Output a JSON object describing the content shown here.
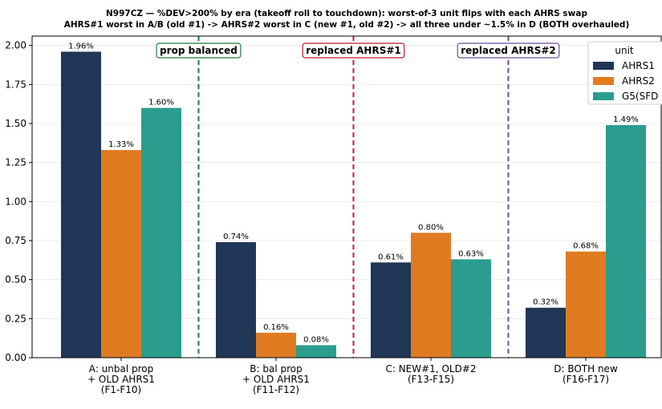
{
  "chart_data": {
    "type": "bar",
    "title": "N997CZ — %DEV>200% by era (takeoff roll to touchdown): worst-of-3 unit flips with each AHRS swap",
    "subtitle": "AHRS#1 worst in A/B (old #1) -> AHRS#2 worst in C (new #1, old #2) -> all three under ~1.5% in D (BOTH overhauled)",
    "categories": [
      "A: unbal prop\n+ OLD AHRS1\n(F1-F10)",
      "B: bal prop\n+ OLD AHRS1\n(F11-F12)",
      "C: NEW#1, OLD#2\n(F13-F15)",
      "D: BOTH new\n(F16-F17)"
    ],
    "series": [
      {
        "name": "AHRS1",
        "color": "#1f3656",
        "values": [
          1.96,
          0.74,
          0.61,
          0.32
        ],
        "value_labels": [
          "1.96%",
          "0.74%",
          "0.61%",
          "0.32%"
        ]
      },
      {
        "name": "AHRS2",
        "color": "#e07b22",
        "values": [
          1.33,
          0.16,
          0.8,
          0.68
        ],
        "value_labels": [
          "1.33%",
          "0.16%",
          "0.80%",
          "0.68%"
        ]
      },
      {
        "name": "G5(SFD",
        "color": "#2a9d8f",
        "values": [
          1.6,
          0.08,
          0.63,
          1.49
        ],
        "value_labels": [
          "1.60%",
          "0.08%",
          "0.63%",
          "1.49%"
        ]
      }
    ],
    "legend_title": "unit",
    "legend": "upper right",
    "ylim": [
      0,
      2.06
    ],
    "yticks": [
      {
        "value": 0,
        "label": "0.00"
      },
      {
        "value": 0.25,
        "label": "0.25"
      },
      {
        "value": 0.5,
        "label": "0.50"
      },
      {
        "value": 0.75,
        "label": "0.75"
      },
      {
        "value": 1,
        "label": "1.00"
      },
      {
        "value": 1.25,
        "label": "1.25"
      },
      {
        "value": 1.5,
        "label": "1.50"
      },
      {
        "value": 1.75,
        "label": "1.75"
      },
      {
        "value": 2,
        "label": "2.00"
      }
    ],
    "grid": true,
    "annotations": [
      {
        "text": "prop balanced",
        "color": "#1e7b3a"
      },
      {
        "text": "replaced AHRS#1",
        "color": "#c0182a"
      },
      {
        "text": "replaced AHRS#2",
        "color": "#6a4c9c"
      }
    ]
  }
}
